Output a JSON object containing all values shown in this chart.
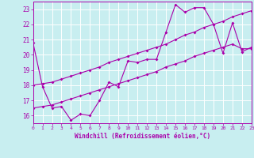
{
  "xlabel": "Windchill (Refroidissement éolien,°C)",
  "bg_color": "#c8eef0",
  "line_color": "#aa00aa",
  "grid_color": "#ffffff",
  "series1_x": [
    0,
    1,
    2,
    3,
    4,
    5,
    6,
    7,
    8,
    9,
    10,
    11,
    12,
    13,
    14,
    15,
    16,
    17,
    18,
    19,
    20,
    21,
    22,
    23
  ],
  "series1_y": [
    20.8,
    17.9,
    16.5,
    16.6,
    15.7,
    16.1,
    16.0,
    17.0,
    18.2,
    17.9,
    19.6,
    19.5,
    19.7,
    19.7,
    21.5,
    23.3,
    22.8,
    23.1,
    23.1,
    22.0,
    20.1,
    22.1,
    20.2,
    20.5
  ],
  "series2_x": [
    0,
    1,
    2,
    3,
    4,
    5,
    6,
    7,
    8,
    9,
    10,
    11,
    12,
    13,
    14,
    15,
    16,
    17,
    18,
    19,
    20,
    21,
    22,
    23
  ],
  "series2_y": [
    18.0,
    18.1,
    18.2,
    18.4,
    18.6,
    18.8,
    19.0,
    19.2,
    19.5,
    19.7,
    19.9,
    20.1,
    20.3,
    20.5,
    20.7,
    21.0,
    21.3,
    21.5,
    21.8,
    22.0,
    22.2,
    22.5,
    22.7,
    22.9
  ],
  "series3_x": [
    0,
    1,
    2,
    3,
    4,
    5,
    6,
    7,
    8,
    9,
    10,
    11,
    12,
    13,
    14,
    15,
    16,
    17,
    18,
    19,
    20,
    21,
    22,
    23
  ],
  "series3_y": [
    16.5,
    16.6,
    16.7,
    16.9,
    17.1,
    17.3,
    17.5,
    17.7,
    17.9,
    18.1,
    18.3,
    18.5,
    18.7,
    18.9,
    19.2,
    19.4,
    19.6,
    19.9,
    20.1,
    20.3,
    20.5,
    20.7,
    20.4,
    20.4
  ],
  "xlim": [
    0,
    23
  ],
  "ylim": [
    15.5,
    23.5
  ],
  "yticks": [
    16,
    17,
    18,
    19,
    20,
    21,
    22,
    23
  ],
  "xticks": [
    0,
    1,
    2,
    3,
    4,
    5,
    6,
    7,
    8,
    9,
    10,
    11,
    12,
    13,
    14,
    15,
    16,
    17,
    18,
    19,
    20,
    21,
    22,
    23
  ],
  "marker": "D",
  "markersize": 2.0,
  "linewidth": 0.8
}
